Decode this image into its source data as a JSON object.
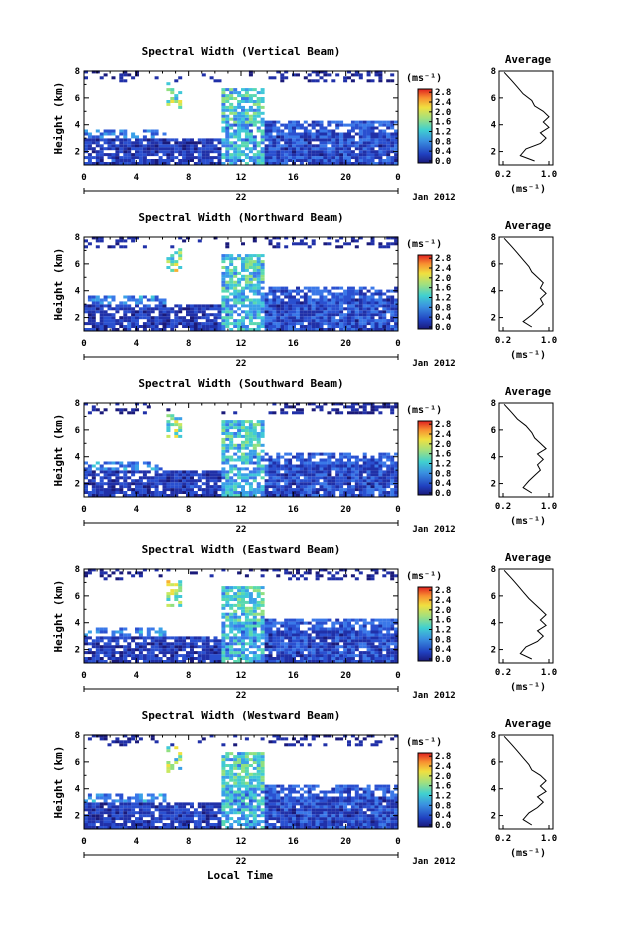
{
  "panels": [
    {
      "title": "Spectral Width (Vertical Beam)"
    },
    {
      "title": "Spectral Width (Northward Beam)"
    },
    {
      "title": "Spectral Width (Southward Beam)"
    },
    {
      "title": "Spectral Width (Eastward Beam)"
    },
    {
      "title": "Spectral Width (Westward Beam)"
    }
  ],
  "y_axis_label": "Height (km)",
  "x_ticks": [
    "0",
    "4",
    "8",
    "12",
    "16",
    "20",
    "0"
  ],
  "y_ticks": [
    "2",
    "4",
    "6",
    "8"
  ],
  "date_day": "22",
  "date_month_year": "Jan 2012",
  "colorbar": {
    "unit": "(ms⁻¹)",
    "ticks": [
      "0.0",
      "0.4",
      "0.8",
      "1.2",
      "1.6",
      "2.0",
      "2.4",
      "2.8"
    ],
    "range": [
      0.0,
      2.8
    ]
  },
  "profile": {
    "title": "Average",
    "x_ticks": [
      "0.2",
      "1.0"
    ],
    "unit": "(ms⁻¹)",
    "y_ticks": [
      "2",
      "4",
      "6",
      "8"
    ]
  },
  "x_axis_label": "Local Time",
  "chart_data": [
    {
      "type": "heatmap",
      "title": "Spectral Width (Vertical Beam)",
      "x_unit": "local time (h)",
      "xlim": [
        0,
        24
      ],
      "ylabel": "Height (km)",
      "ylim": [
        1,
        8
      ],
      "zlim": [
        0.0,
        2.8
      ],
      "average_profile": {
        "title": "Average",
        "xlim": [
          0.2,
          1.0
        ],
        "ylim": [
          1,
          8
        ],
        "points": [
          [
            0.75,
            1.3
          ],
          [
            0.5,
            1.7
          ],
          [
            0.6,
            2.2
          ],
          [
            0.85,
            2.6
          ],
          [
            0.95,
            3.0
          ],
          [
            0.85,
            3.4
          ],
          [
            1.0,
            3.8
          ],
          [
            0.9,
            4.2
          ],
          [
            1.0,
            4.6
          ],
          [
            0.9,
            5.0
          ],
          [
            0.75,
            5.4
          ],
          [
            0.7,
            5.8
          ],
          [
            0.55,
            6.3
          ],
          [
            0.45,
            6.8
          ],
          [
            0.35,
            7.3
          ],
          [
            0.22,
            7.9
          ]
        ]
      }
    },
    {
      "type": "heatmap",
      "title": "Spectral Width (Northward Beam)",
      "x_unit": "local time (h)",
      "xlim": [
        0,
        24
      ],
      "ylabel": "Height (km)",
      "ylim": [
        1,
        8
      ],
      "zlim": [
        0.0,
        2.8
      ],
      "average_profile": {
        "title": "Average",
        "xlim": [
          0.2,
          1.0
        ],
        "ylim": [
          1,
          8
        ],
        "points": [
          [
            0.7,
            1.3
          ],
          [
            0.55,
            1.7
          ],
          [
            0.7,
            2.2
          ],
          [
            0.8,
            2.6
          ],
          [
            0.9,
            3.0
          ],
          [
            0.85,
            3.4
          ],
          [
            0.95,
            3.8
          ],
          [
            0.85,
            4.2
          ],
          [
            0.9,
            4.6
          ],
          [
            0.8,
            5.0
          ],
          [
            0.7,
            5.4
          ],
          [
            0.65,
            5.8
          ],
          [
            0.55,
            6.3
          ],
          [
            0.45,
            6.8
          ],
          [
            0.35,
            7.3
          ],
          [
            0.22,
            7.9
          ]
        ]
      }
    },
    {
      "type": "heatmap",
      "title": "Spectral Width (Southward Beam)",
      "x_unit": "local time (h)",
      "xlim": [
        0,
        24
      ],
      "ylabel": "Height (km)",
      "ylim": [
        1,
        8
      ],
      "zlim": [
        0.0,
        2.8
      ],
      "average_profile": {
        "title": "Average",
        "xlim": [
          0.2,
          1.0
        ],
        "ylim": [
          1,
          8
        ],
        "points": [
          [
            0.7,
            1.3
          ],
          [
            0.55,
            1.7
          ],
          [
            0.65,
            2.2
          ],
          [
            0.75,
            2.6
          ],
          [
            0.85,
            3.0
          ],
          [
            0.8,
            3.4
          ],
          [
            0.9,
            3.8
          ],
          [
            0.8,
            4.2
          ],
          [
            0.95,
            4.6
          ],
          [
            0.85,
            5.0
          ],
          [
            0.75,
            5.4
          ],
          [
            0.7,
            5.8
          ],
          [
            0.6,
            6.3
          ],
          [
            0.45,
            6.8
          ],
          [
            0.35,
            7.3
          ],
          [
            0.22,
            7.9
          ]
        ]
      }
    },
    {
      "type": "heatmap",
      "title": "Spectral Width (Eastward Beam)",
      "x_unit": "local time (h)",
      "xlim": [
        0,
        24
      ],
      "ylabel": "Height (km)",
      "ylim": [
        1,
        8
      ],
      "zlim": [
        0.0,
        2.8
      ],
      "average_profile": {
        "title": "Average",
        "xlim": [
          0.2,
          1.0
        ],
        "ylim": [
          1,
          8
        ],
        "points": [
          [
            0.7,
            1.3
          ],
          [
            0.5,
            1.7
          ],
          [
            0.6,
            2.2
          ],
          [
            0.8,
            2.6
          ],
          [
            0.9,
            3.0
          ],
          [
            0.8,
            3.4
          ],
          [
            0.95,
            3.8
          ],
          [
            0.85,
            4.2
          ],
          [
            0.95,
            4.6
          ],
          [
            0.85,
            5.0
          ],
          [
            0.75,
            5.4
          ],
          [
            0.65,
            5.8
          ],
          [
            0.55,
            6.3
          ],
          [
            0.45,
            6.8
          ],
          [
            0.35,
            7.3
          ],
          [
            0.22,
            7.9
          ]
        ]
      }
    },
    {
      "type": "heatmap",
      "title": "Spectral Width (Westward Beam)",
      "x_unit": "local time (h)",
      "xlim": [
        0,
        24
      ],
      "ylabel": "Height (km)",
      "ylim": [
        1,
        8
      ],
      "zlim": [
        0.0,
        2.8
      ],
      "average_profile": {
        "title": "Average",
        "xlim": [
          0.2,
          1.0
        ],
        "ylim": [
          1,
          8
        ],
        "points": [
          [
            0.7,
            1.3
          ],
          [
            0.55,
            1.7
          ],
          [
            0.65,
            2.2
          ],
          [
            0.8,
            2.6
          ],
          [
            0.9,
            3.0
          ],
          [
            0.8,
            3.4
          ],
          [
            0.95,
            3.8
          ],
          [
            0.85,
            4.2
          ],
          [
            0.95,
            4.6
          ],
          [
            0.85,
            5.0
          ],
          [
            0.7,
            5.4
          ],
          [
            0.65,
            5.8
          ],
          [
            0.55,
            6.3
          ],
          [
            0.45,
            6.8
          ],
          [
            0.35,
            7.3
          ],
          [
            0.22,
            7.9
          ]
        ]
      }
    }
  ]
}
